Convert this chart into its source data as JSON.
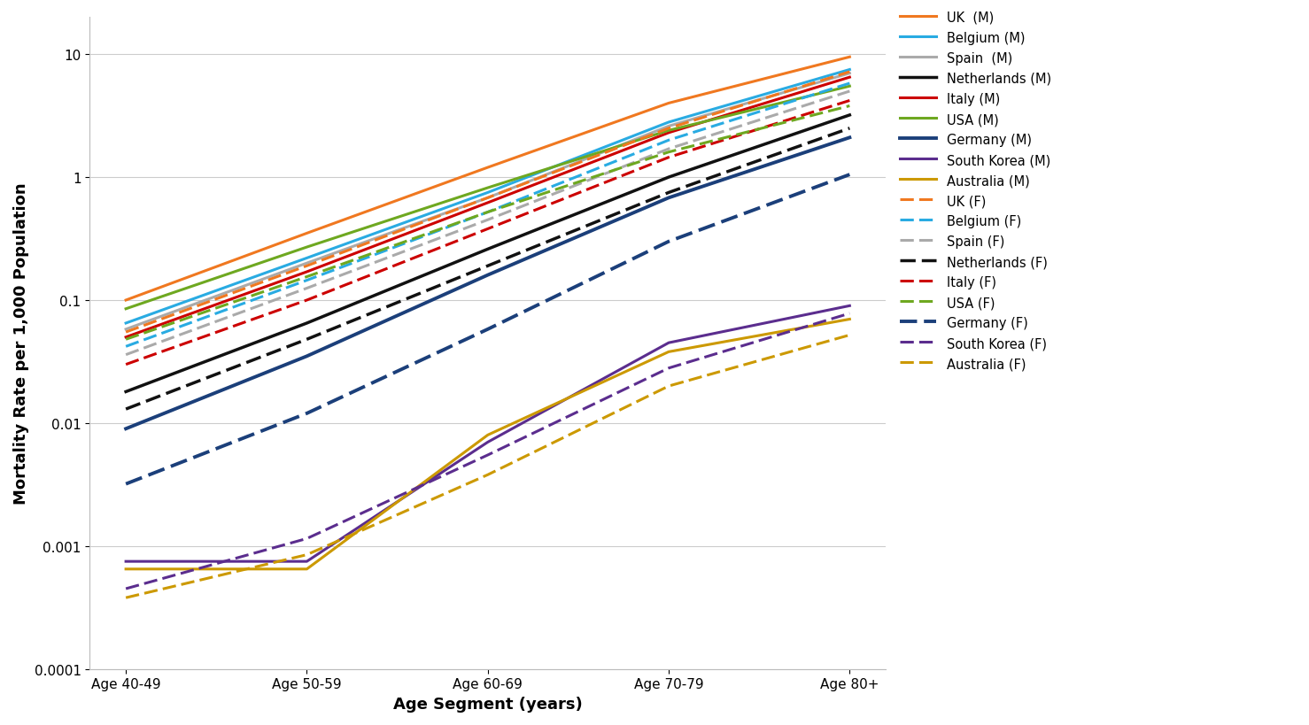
{
  "x_labels": [
    "Age 40-49",
    "Age 50-59",
    "Age 60-69",
    "Age 70-79",
    "Age 80+"
  ],
  "series": [
    {
      "label": "UK  (M)",
      "color": "#F07820",
      "linestyle": "solid",
      "linewidth": 2.2,
      "values": [
        0.1,
        0.35,
        1.2,
        4.0,
        9.5
      ]
    },
    {
      "label": "Belgium (M)",
      "color": "#29ABE2",
      "linestyle": "solid",
      "linewidth": 2.2,
      "values": [
        0.065,
        0.22,
        0.75,
        2.8,
        7.5
      ]
    },
    {
      "label": "Spain  (M)",
      "color": "#AAAAAA",
      "linestyle": "solid",
      "linewidth": 2.2,
      "values": [
        0.058,
        0.2,
        0.68,
        2.6,
        7.0
      ]
    },
    {
      "label": "Netherlands (M)",
      "color": "#111111",
      "linestyle": "solid",
      "linewidth": 2.5,
      "values": [
        0.018,
        0.065,
        0.26,
        1.0,
        3.2
      ]
    },
    {
      "label": "Italy (M)",
      "color": "#CC0000",
      "linestyle": "solid",
      "linewidth": 2.2,
      "values": [
        0.05,
        0.17,
        0.62,
        2.3,
        6.5
      ]
    },
    {
      "label": "USA (M)",
      "color": "#6EA820",
      "linestyle": "solid",
      "linewidth": 2.2,
      "values": [
        0.085,
        0.27,
        0.82,
        2.4,
        5.5
      ]
    },
    {
      "label": "Germany (M)",
      "color": "#1B3F7A",
      "linestyle": "solid",
      "linewidth": 2.8,
      "values": [
        0.009,
        0.035,
        0.16,
        0.68,
        2.1
      ]
    },
    {
      "label": "South Korea (M)",
      "color": "#5B2D8E",
      "linestyle": "solid",
      "linewidth": 2.2,
      "values": [
        0.00075,
        0.00075,
        0.007,
        0.045,
        0.09
      ]
    },
    {
      "label": "Australia (M)",
      "color": "#CC9900",
      "linestyle": "solid",
      "linewidth": 2.2,
      "values": [
        0.00065,
        0.00065,
        0.008,
        0.038,
        0.07
      ]
    },
    {
      "label": "UK (F)",
      "color": "#F07820",
      "linestyle": "dashed",
      "linewidth": 2.2,
      "values": [
        0.055,
        0.19,
        0.68,
        2.5,
        7.2
      ]
    },
    {
      "label": "Belgium (F)",
      "color": "#29ABE2",
      "linestyle": "dashed",
      "linewidth": 2.2,
      "values": [
        0.042,
        0.145,
        0.52,
        2.0,
        5.8
      ]
    },
    {
      "label": "Spain (F)",
      "color": "#AAAAAA",
      "linestyle": "dashed",
      "linewidth": 2.2,
      "values": [
        0.036,
        0.125,
        0.45,
        1.7,
        5.0
      ]
    },
    {
      "label": "Netherlands (F)",
      "color": "#111111",
      "linestyle": "dashed",
      "linewidth": 2.5,
      "values": [
        0.013,
        0.048,
        0.19,
        0.75,
        2.5
      ]
    },
    {
      "label": "Italy (F)",
      "color": "#CC0000",
      "linestyle": "dashed",
      "linewidth": 2.2,
      "values": [
        0.03,
        0.1,
        0.38,
        1.45,
        4.2
      ]
    },
    {
      "label": "USA (F)",
      "color": "#6EA820",
      "linestyle": "dashed",
      "linewidth": 2.2,
      "values": [
        0.048,
        0.155,
        0.52,
        1.6,
        3.8
      ]
    },
    {
      "label": "Germany (F)",
      "color": "#1B3F7A",
      "linestyle": "dashed",
      "linewidth": 2.8,
      "values": [
        0.0032,
        0.012,
        0.058,
        0.3,
        1.05
      ]
    },
    {
      "label": "South Korea (F)",
      "color": "#5B2D8E",
      "linestyle": "dashed",
      "linewidth": 2.2,
      "values": [
        0.00045,
        0.00115,
        0.0055,
        0.028,
        0.078
      ]
    },
    {
      "label": "Australia (F)",
      "color": "#CC9900",
      "linestyle": "dashed",
      "linewidth": 2.2,
      "values": [
        0.00038,
        0.00085,
        0.0038,
        0.02,
        0.052
      ]
    }
  ],
  "ylabel": "Mortality Rate per 1,000 Population",
  "xlabel": "Age Segment (years)",
  "ylim": [
    0.0001,
    20
  ],
  "background_color": "#ffffff",
  "grid_color": "#cccccc",
  "label_fontsize": 13,
  "tick_fontsize": 11,
  "legend_fontsize": 10.5
}
